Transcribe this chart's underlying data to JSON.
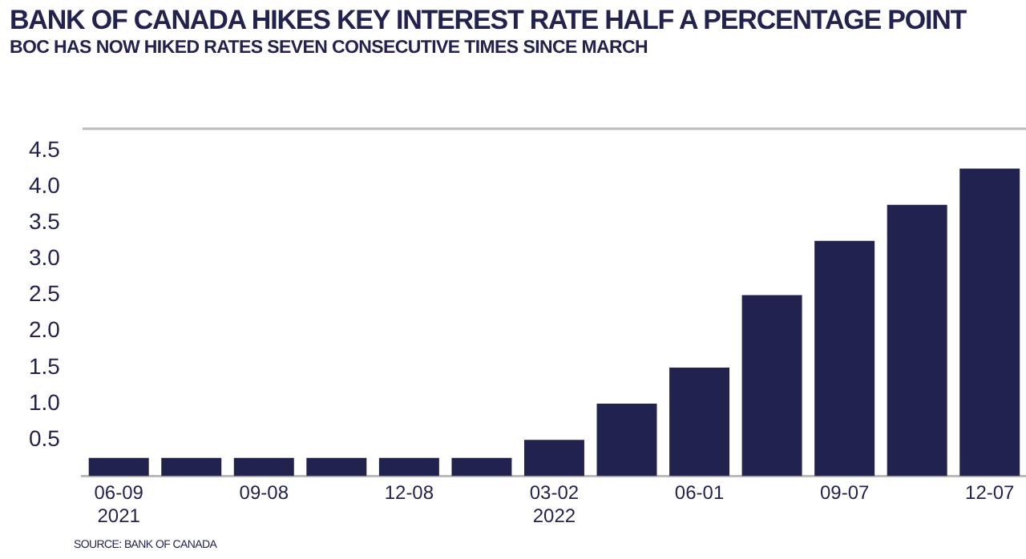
{
  "chart_data": {
    "type": "bar",
    "title": "BANK OF CANADA HIKES KEY INTEREST RATE HALF A PERCENTAGE POINT",
    "subtitle": "BOC HAS NOW HIKED RATES SEVEN CONSECUTIVE TIMES SINCE MARCH",
    "categories": [
      "06-09\n2021",
      null,
      "09-08",
      null,
      "12-08",
      null,
      "03-02\n2022",
      null,
      "06-01",
      null,
      "09-07",
      null,
      "12-07"
    ],
    "values": [
      0.25,
      0.25,
      0.25,
      0.25,
      0.25,
      0.25,
      0.5,
      1.0,
      1.5,
      2.5,
      3.25,
      3.75,
      4.25
    ],
    "color": "#22224f",
    "ylim": [
      0,
      4.8
    ],
    "yticks": [
      {
        "value": 0.5,
        "label": "0.5"
      },
      {
        "value": 1,
        "label": "1.0"
      },
      {
        "value": 1.5,
        "label": "1.5"
      },
      {
        "value": 2,
        "label": "2.0"
      },
      {
        "value": 2.5,
        "label": "2.5"
      },
      {
        "value": 3,
        "label": "3.0"
      },
      {
        "value": 3.5,
        "label": "3.5"
      },
      {
        "value": 4,
        "label": "4.0"
      },
      {
        "value": 4.5,
        "label": "4.5"
      }
    ],
    "grid": false,
    "legend": false,
    "annotations": [
      "SOURCE: BANK OF CANADA"
    ]
  }
}
